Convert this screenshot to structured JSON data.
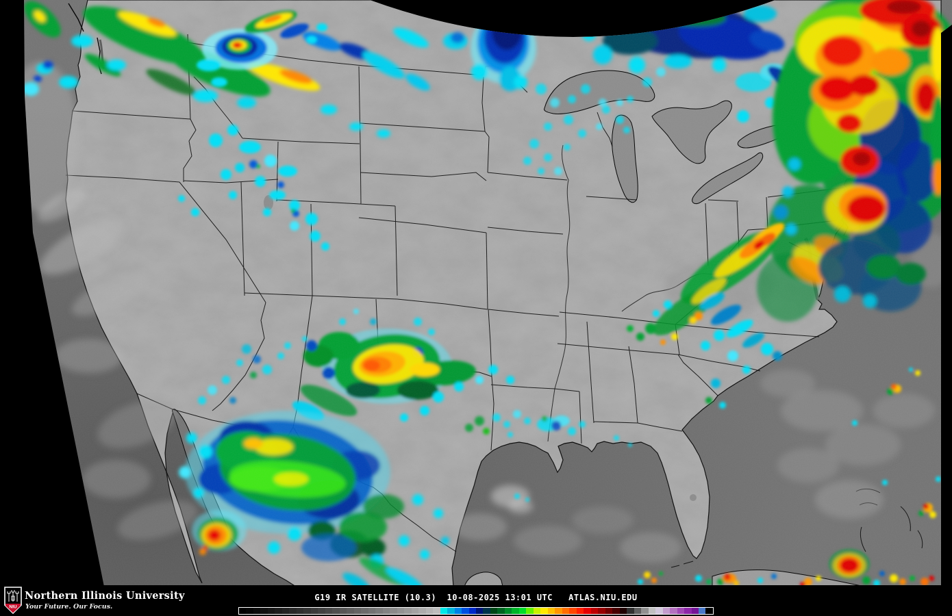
{
  "caption": {
    "text": "G19 IR SATELLITE (10.3)  10-08-2025 13:01 UTC   ATLAS.NIU.EDU",
    "satellite": "G19",
    "product": "IR SATELLITE",
    "band": "10.3",
    "date": "10-08-2025",
    "time_utc": "13:01 UTC",
    "source": "ATLAS.NIU.EDU",
    "text_color": "#ffffff"
  },
  "footer": {
    "university_name": "Northern Illinois University",
    "tagline": "Your Future. Our Focus.",
    "logo_acronym": "NIU",
    "logo_red": "#c8102e"
  },
  "colorbar": {
    "border_color": "#ffffff",
    "colors": [
      "#000000",
      "#050505",
      "#0b0b0b",
      "#101010",
      "#161616",
      "#1c1c1c",
      "#222222",
      "#282828",
      "#2e2e2e",
      "#343434",
      "#3a3a3a",
      "#414141",
      "#484848",
      "#4f4f4f",
      "#565656",
      "#5d5d5d",
      "#646464",
      "#6b6b6b",
      "#727272",
      "#7a7a7a",
      "#828282",
      "#8a8a8a",
      "#929292",
      "#9a9a9a",
      "#a2a2a2",
      "#ababab",
      "#b4b4b4",
      "#bdbdbd",
      "#00e8e8",
      "#00b4dc",
      "#0082e6",
      "#0050e0",
      "#0028c8",
      "#001478",
      "#00324a",
      "#004616",
      "#006420",
      "#008c28",
      "#00b428",
      "#00dc28",
      "#64f000",
      "#c8f000",
      "#ffe800",
      "#ffc000",
      "#ff9600",
      "#ff6e00",
      "#ff4600",
      "#ff1e00",
      "#e60000",
      "#be0000",
      "#960000",
      "#6e0000",
      "#460000",
      "#1e0000",
      "#303030",
      "#606060",
      "#909090",
      "#c0c0c0",
      "#d2c8dc",
      "#c39ccd",
      "#b470c0",
      "#a048b4",
      "#8c26a8",
      "#741496",
      "#4878c8",
      "#000000"
    ]
  },
  "map_palette": {
    "space_background": "#000000",
    "land_gray": "#a2a2a2",
    "ocean_gray": "#747474",
    "lake_gray": "#8d8d8d",
    "cold_cloud_cyan": "#00e0f8",
    "cold_cloud_blue": "#0028c8",
    "cold_cloud_green": "#00a030",
    "cold_cloud_yellow": "#ffe800",
    "cold_cloud_orange": "#ff8800",
    "cold_cloud_red": "#e80000"
  }
}
